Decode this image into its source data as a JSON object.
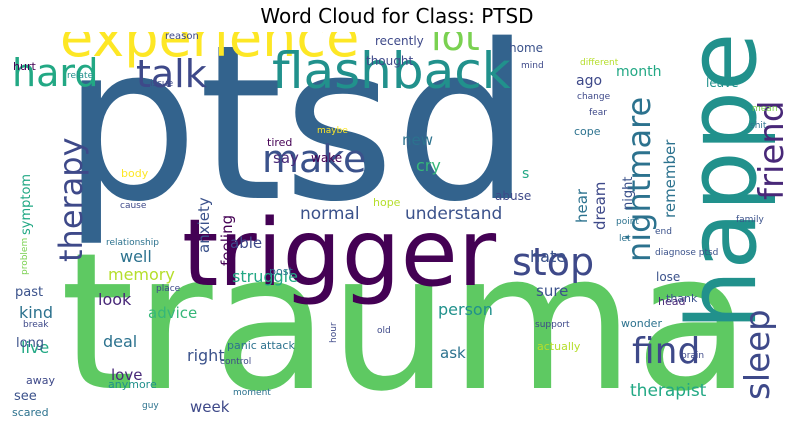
{
  "chart_data": {
    "type": "wordcloud",
    "title": "Word Cloud for Class: PTSD",
    "words": [
      {
        "text": "ptsd",
        "weight": 1.0,
        "color": "#33638d"
      },
      {
        "text": "trauma",
        "weight": 0.95,
        "color": "#5ec962"
      },
      {
        "text": "trigger",
        "weight": 0.58,
        "color": "#440154"
      },
      {
        "text": "happen",
        "weight": 0.52,
        "color": "#21918c"
      },
      {
        "text": "experience",
        "weight": 0.42,
        "color": "#fde725"
      },
      {
        "text": "flashback",
        "weight": 0.39,
        "color": "#21918c"
      },
      {
        "text": "make",
        "weight": 0.3,
        "color": "#3b528b"
      },
      {
        "text": "talk",
        "weight": 0.29,
        "color": "#3e4989"
      },
      {
        "text": "lot",
        "weight": 0.29,
        "color": "#7ad151"
      },
      {
        "text": "friend",
        "weight": 0.26,
        "color": "#482878"
      },
      {
        "text": "nightmare",
        "weight": 0.26,
        "color": "#2c728e"
      },
      {
        "text": "stop",
        "weight": 0.25,
        "color": "#3e4989"
      },
      {
        "text": "come",
        "weight": 0.25,
        "color": "#3e4989"
      },
      {
        "text": "sleep",
        "weight": 0.24,
        "color": "#3e4989"
      },
      {
        "text": "find",
        "weight": 0.23,
        "color": "#3e4989"
      },
      {
        "text": "hard",
        "weight": 0.22,
        "color": "#22a884"
      },
      {
        "text": "therapy",
        "weight": 0.22,
        "color": "#3e4989"
      },
      {
        "text": "therapist",
        "weight": 0.1,
        "color": "#22a884"
      },
      {
        "text": "understand",
        "weight": 0.09,
        "color": "#3b528b"
      },
      {
        "text": "normal",
        "weight": 0.09,
        "color": "#3b528b"
      },
      {
        "text": "remember",
        "weight": 0.09,
        "color": "#2c728e"
      },
      {
        "text": "anxiety",
        "weight": 0.09,
        "color": "#3b528b"
      },
      {
        "text": "feeling",
        "weight": 0.09,
        "color": "#440154"
      },
      {
        "text": "struggle",
        "weight": 0.09,
        "color": "#22a884"
      },
      {
        "text": "memory",
        "weight": 0.09,
        "color": "#b5de2b"
      },
      {
        "text": "cry",
        "weight": 0.09,
        "color": "#35b779"
      },
      {
        "text": "hate",
        "weight": 0.09,
        "color": "#3b528b"
      },
      {
        "text": "person",
        "weight": 0.09,
        "color": "#21918c"
      },
      {
        "text": "look",
        "weight": 0.09,
        "color": "#482878"
      },
      {
        "text": "right",
        "weight": 0.09,
        "color": "#3b528b"
      },
      {
        "text": "deal",
        "weight": 0.09,
        "color": "#2c728e"
      },
      {
        "text": "live",
        "weight": 0.09,
        "color": "#22a884"
      },
      {
        "text": "kind",
        "weight": 0.09,
        "color": "#2c728e"
      },
      {
        "text": "advice",
        "weight": 0.08,
        "color": "#35b779"
      },
      {
        "text": "well",
        "weight": 0.09,
        "color": "#2c728e"
      },
      {
        "text": "able",
        "weight": 0.08,
        "color": "#3e4989"
      },
      {
        "text": "say",
        "weight": 0.08,
        "color": "#482878"
      },
      {
        "text": "new",
        "weight": 0.08,
        "color": "#2c728e"
      },
      {
        "text": "dream",
        "weight": 0.08,
        "color": "#3e4989"
      },
      {
        "text": "hear",
        "weight": 0.08,
        "color": "#2c728e"
      },
      {
        "text": "sure",
        "weight": 0.08,
        "color": "#3b528b"
      },
      {
        "text": "ask",
        "weight": 0.08,
        "color": "#2c728e"
      },
      {
        "text": "love",
        "weight": 0.08,
        "color": "#482878"
      },
      {
        "text": "week",
        "weight": 0.08,
        "color": "#3e4989"
      },
      {
        "text": "month",
        "weight": 0.07,
        "color": "#22a884"
      },
      {
        "text": "ago",
        "weight": 0.07,
        "color": "#3e4989"
      },
      {
        "text": "symptom",
        "weight": 0.07,
        "color": "#22a884"
      },
      {
        "text": "past",
        "weight": 0.07,
        "color": "#3b528b"
      },
      {
        "text": "long",
        "weight": 0.07,
        "color": "#3b528b"
      },
      {
        "text": "s",
        "weight": 0.07,
        "color": "#22a884"
      },
      {
        "text": "night",
        "weight": 0.06,
        "color": "#3b528b"
      },
      {
        "text": "see",
        "weight": 0.06,
        "color": "#3b528b"
      },
      {
        "text": "recently",
        "weight": 0.05,
        "color": "#3e4989"
      },
      {
        "text": "home",
        "weight": 0.05,
        "color": "#3b528b"
      },
      {
        "text": "thought",
        "weight": 0.05,
        "color": "#3e4989"
      },
      {
        "text": "leave",
        "weight": 0.05,
        "color": "#21918c"
      },
      {
        "text": "cope",
        "weight": 0.05,
        "color": "#2c728e"
      },
      {
        "text": "wake",
        "weight": 0.05,
        "color": "#440154"
      },
      {
        "text": "tired",
        "weight": 0.05,
        "color": "#440154"
      },
      {
        "text": "body",
        "weight": 0.05,
        "color": "#fde725"
      },
      {
        "text": "hope",
        "weight": 0.05,
        "color": "#b5de2b"
      },
      {
        "text": "abuse",
        "weight": 0.05,
        "color": "#3e4989"
      },
      {
        "text": "lose",
        "weight": 0.05,
        "color": "#3b528b"
      },
      {
        "text": "thank",
        "weight": 0.05,
        "color": "#3b528b"
      },
      {
        "text": "head",
        "weight": 0.05,
        "color": "#482878"
      },
      {
        "text": "wonder",
        "weight": 0.05,
        "color": "#2c728e"
      },
      {
        "text": "post",
        "weight": 0.05,
        "color": "#2c728e"
      },
      {
        "text": "panic attack",
        "weight": 0.05,
        "color": "#2c728e"
      },
      {
        "text": "actually",
        "weight": 0.05,
        "color": "#b5de2b"
      },
      {
        "text": "anymore",
        "weight": 0.05,
        "color": "#21918c"
      },
      {
        "text": "away",
        "weight": 0.05,
        "color": "#3e4989"
      },
      {
        "text": "scared",
        "weight": 0.05,
        "color": "#2c728e"
      },
      {
        "text": "hurt",
        "weight": 0.05,
        "color": "#440154"
      },
      {
        "text": "reason",
        "weight": 0.04,
        "color": "#3e4989"
      },
      {
        "text": "relate",
        "weight": 0.04,
        "color": "#21918c"
      },
      {
        "text": "issue",
        "weight": 0.04,
        "color": "#3e4989"
      },
      {
        "text": "mind",
        "weight": 0.04,
        "color": "#3e4989"
      },
      {
        "text": "different",
        "weight": 0.04,
        "color": "#b5de2b"
      },
      {
        "text": "change",
        "weight": 0.04,
        "color": "#3e4989"
      },
      {
        "text": "fear",
        "weight": 0.04,
        "color": "#3e4989"
      },
      {
        "text": "mean",
        "weight": 0.04,
        "color": "#7ad151"
      },
      {
        "text": "shit",
        "weight": 0.04,
        "color": "#2c728e"
      },
      {
        "text": "maybe",
        "weight": 0.04,
        "color": "#fde725"
      },
      {
        "text": "cause",
        "weight": 0.04,
        "color": "#3e4989"
      },
      {
        "text": "relationship",
        "weight": 0.04,
        "color": "#2c728e"
      },
      {
        "text": "problem",
        "weight": 0.04,
        "color": "#7ad151"
      },
      {
        "text": "point",
        "weight": 0.04,
        "color": "#2c728e"
      },
      {
        "text": "let",
        "weight": 0.04,
        "color": "#2c728e"
      },
      {
        "text": "end",
        "weight": 0.04,
        "color": "#3b528b"
      },
      {
        "text": "family",
        "weight": 0.04,
        "color": "#3b528b"
      },
      {
        "text": "diagnose ptsd",
        "weight": 0.04,
        "color": "#3b528b"
      },
      {
        "text": "place",
        "weight": 0.04,
        "color": "#3e4989"
      },
      {
        "text": "break",
        "weight": 0.04,
        "color": "#3e4989"
      },
      {
        "text": "old",
        "weight": 0.04,
        "color": "#3e4989"
      },
      {
        "text": "hour",
        "weight": 0.04,
        "color": "#3e4989"
      },
      {
        "text": "support",
        "weight": 0.04,
        "color": "#3e4989"
      },
      {
        "text": "control",
        "weight": 0.04,
        "color": "#3e4989"
      },
      {
        "text": "moment",
        "weight": 0.04,
        "color": "#2c728e"
      },
      {
        "text": "guy",
        "weight": 0.04,
        "color": "#2c728e"
      },
      {
        "text": "brain",
        "weight": 0.04,
        "color": "#3e4989"
      }
    ]
  }
}
